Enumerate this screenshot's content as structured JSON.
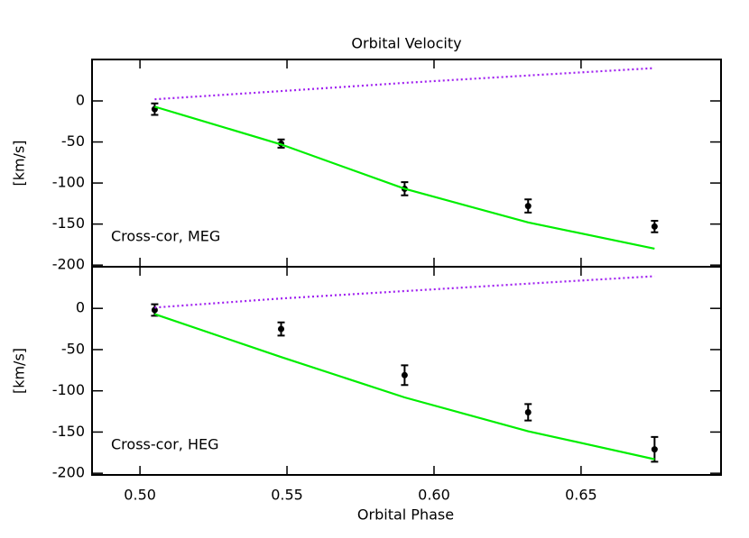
{
  "chart_data": [
    {
      "type": "line",
      "title": "Orbital Velocity",
      "ylabel": "[km/s]",
      "annotation": "Cross-cor, MEG",
      "x": [
        0.505,
        0.548,
        0.59,
        0.632,
        0.675
      ],
      "series": [
        {
          "color": "#000000",
          "values": [
            -10,
            -52,
            -107,
            -128,
            -153
          ],
          "errors": [
            7,
            5,
            8,
            8,
            7
          ]
        },
        {
          "color": "#00ee00",
          "values": [
            -7,
            -53,
            -107,
            -148,
            -180
          ]
        },
        {
          "color": "#a020f0",
          "dash": "dotted",
          "values": [
            2,
            12,
            22,
            31,
            40
          ]
        }
      ],
      "xlim": [
        0.4837,
        0.6976
      ],
      "xticks": [
        {
          "value": 0.5,
          "label": "0.50"
        },
        {
          "value": 0.55,
          "label": "0.55"
        },
        {
          "value": 0.6,
          "label": "0.60"
        },
        {
          "value": 0.65,
          "label": "0.65"
        }
      ],
      "ylim": [
        -202,
        50.5
      ],
      "yticks": [
        0,
        -50,
        -100,
        -150,
        -200
      ]
    },
    {
      "type": "line",
      "xlabel": "Orbital Phase",
      "ylabel": "[km/s]",
      "annotation": "Cross-cor, HEG",
      "x": [
        0.505,
        0.548,
        0.59,
        0.632,
        0.675
      ],
      "series": [
        {
          "color": "#000000",
          "values": [
            -2,
            -25,
            -81,
            -126,
            -171
          ],
          "errors": [
            7,
            8,
            12,
            10,
            15
          ]
        },
        {
          "color": "#00ee00",
          "values": [
            -7,
            -59,
            -108,
            -149,
            -183
          ]
        },
        {
          "color": "#a020f0",
          "dash": "dotted",
          "values": [
            1,
            12,
            21,
            30,
            39
          ]
        }
      ],
      "xlim": [
        0.4837,
        0.6976
      ],
      "xticks": [
        {
          "value": 0.5,
          "label": "0.50"
        },
        {
          "value": 0.55,
          "label": "0.55"
        },
        {
          "value": 0.6,
          "label": "0.60"
        },
        {
          "value": 0.65,
          "label": "0.65"
        }
      ],
      "ylim": [
        -202,
        50.5
      ],
      "yticks": [
        0,
        -50,
        -100,
        -150,
        -200
      ]
    }
  ]
}
